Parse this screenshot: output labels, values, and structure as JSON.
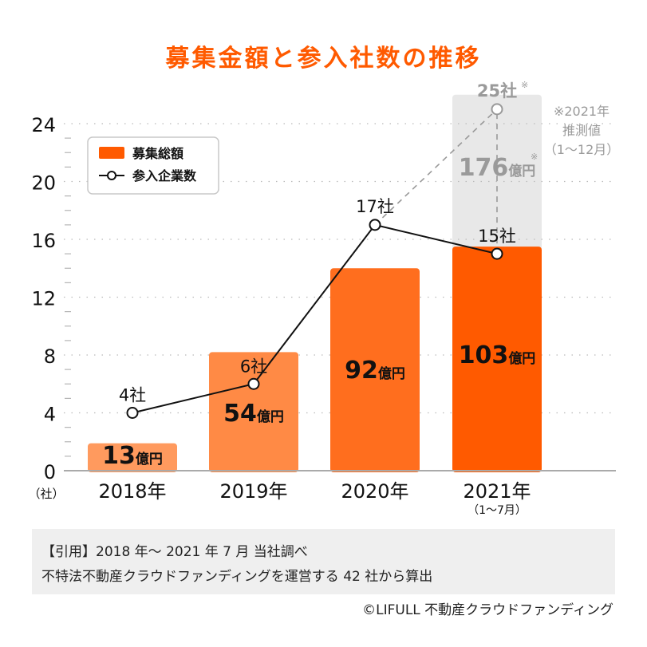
{
  "chart_data": {
    "type": "bar",
    "title": "募集金額と参入社数の推移",
    "categories": [
      "2018年",
      "2019年",
      "2020年",
      "2021年"
    ],
    "category_sublabels": [
      "",
      "",
      "",
      "（1〜7月）"
    ],
    "y_axis": {
      "ylim": [
        0,
        24
      ],
      "ticks": [
        0,
        4,
        8,
        12,
        16,
        20,
        24
      ],
      "minor_step": 1,
      "unit_label": "（社）",
      "grid": true
    },
    "series": [
      {
        "name": "募集総額",
        "kind": "bar",
        "values": [
          13,
          54,
          92,
          103
        ],
        "value_labels": [
          "13",
          "54",
          "92",
          "103"
        ],
        "value_unit": "億円",
        "bar_display_levels": [
          1.9,
          8.2,
          14.0,
          15.5
        ],
        "colors": [
          "#ff9a5e",
          "#ff8a45",
          "#ff6e1e",
          "#ff5a00"
        ]
      },
      {
        "name": "参入企業数",
        "kind": "line",
        "values": [
          4,
          6,
          17,
          15
        ],
        "value_labels": [
          "4社",
          "6社",
          "17社",
          "15社"
        ],
        "color": "#111111"
      }
    ],
    "forecast": {
      "category": "2021年",
      "bar_value": 176,
      "bar_value_label": "176",
      "bar_unit": "億円",
      "bar_display_level": 26.0,
      "bar_mark": "※",
      "companies": 25,
      "companies_label": "25社",
      "companies_mark": "※",
      "note_lines": [
        "※2021年",
        "推測値",
        "（1〜12月）"
      ],
      "color": "#e8e8e8",
      "text_color": "#9a9a9a"
    },
    "legend": {
      "position": "top-left",
      "items": [
        {
          "label": "募集総額",
          "type": "bar",
          "color": "#ff5a00"
        },
        {
          "label": "参入企業数",
          "type": "line-marker",
          "color": "#111111"
        }
      ]
    }
  },
  "header": {
    "title": "募集金額と参入社数の推移"
  },
  "footer": {
    "note_line1": "【引用】2018 年〜 2021 年 7 月 当社調べ",
    "note_line2": "不特法不動産クラウドファンディングを運営する 42 社から算出",
    "credit": "©LIFULL 不動産クラウドファンディング"
  },
  "colors": {
    "accent": "#ff5a00",
    "axis": "#aaaaaa",
    "grid": "#bbbbbb"
  }
}
